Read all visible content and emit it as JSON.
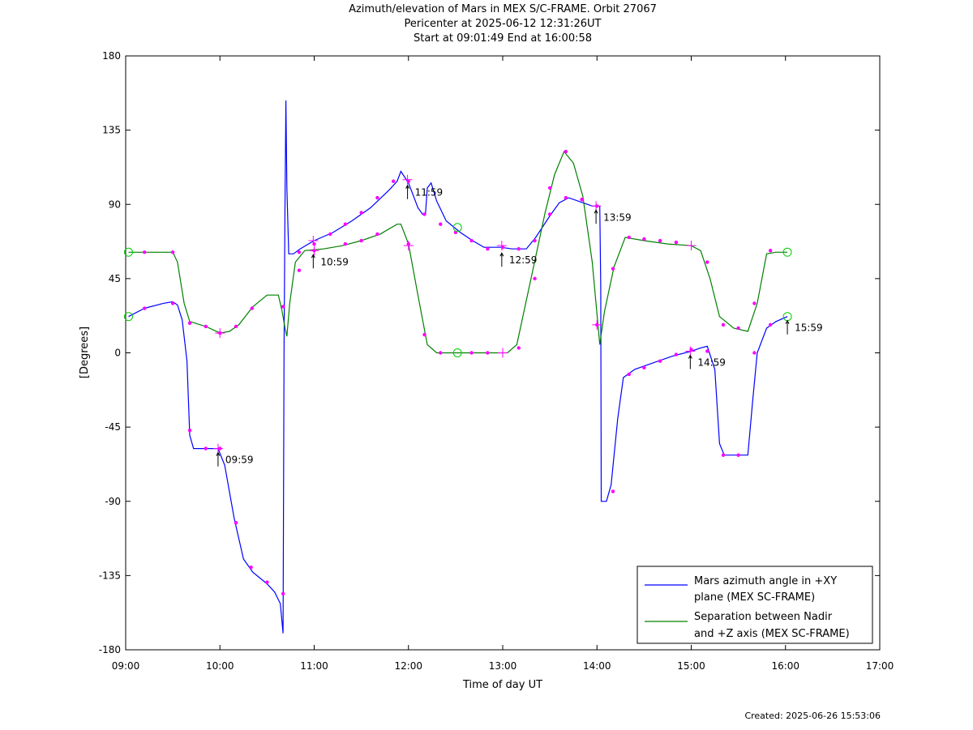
{
  "title_lines": [
    "Azimuth/elevation of Mars in MEX S/C-FRAME.  Orbit 27067",
    "Pericenter at 2025-06-12 12:31:26UT",
    "Start at 09:01:49 End at 16:00:58"
  ],
  "footer": "Created: 2025-06-26 15:53:06",
  "chart_data": {
    "type": "line",
    "xlabel": "Time of day UT",
    "ylabel": "[Degrees]",
    "xlim": [
      9,
      17
    ],
    "ylim": [
      -180,
      180
    ],
    "x_ticks": [
      9,
      10,
      11,
      12,
      13,
      14,
      15,
      16,
      17
    ],
    "x_tick_labels": [
      "09:00",
      "10:00",
      "11:00",
      "12:00",
      "13:00",
      "14:00",
      "15:00",
      "16:00",
      "17:00"
    ],
    "y_ticks": [
      180,
      135,
      90,
      45,
      0,
      -45,
      -90,
      -135,
      -180
    ],
    "y_tick_labels": [
      "180",
      "135",
      "90",
      "45",
      "0",
      "-45",
      "-90",
      "-135",
      "-180"
    ],
    "grid": false,
    "legend_position": "bottom-right",
    "colors": {
      "azimuth": "#0000ff",
      "separation": "#008000",
      "markers": "#ff00ff",
      "endpoints": "#00cc00"
    },
    "series": [
      {
        "name": "Mars azimuth angle in +XY plane (MEX SC-FRAME)",
        "legend_lines": [
          "Mars azimuth angle in +XY",
          "plane (MEX SC-FRAME)"
        ],
        "color": "#0000ff",
        "points": [
          [
            9.03,
            22
          ],
          [
            9.2,
            27
          ],
          [
            9.4,
            30
          ],
          [
            9.5,
            31
          ],
          [
            9.55,
            29
          ],
          [
            9.6,
            20
          ],
          [
            9.65,
            -5
          ],
          [
            9.68,
            -50
          ],
          [
            9.72,
            -58
          ],
          [
            9.85,
            -58
          ],
          [
            9.98,
            -58
          ],
          [
            10.05,
            -68
          ],
          [
            10.15,
            -100
          ],
          [
            10.25,
            -125
          ],
          [
            10.35,
            -133
          ],
          [
            10.5,
            -140
          ],
          [
            10.58,
            -145
          ],
          [
            10.64,
            -152
          ],
          [
            10.67,
            -170
          ],
          [
            10.68,
            0
          ],
          [
            10.69,
            90
          ],
          [
            10.7,
            153
          ],
          [
            10.71,
            100
          ],
          [
            10.73,
            60
          ],
          [
            10.78,
            60
          ],
          [
            10.85,
            63
          ],
          [
            11.0,
            68
          ],
          [
            11.2,
            73
          ],
          [
            11.4,
            80
          ],
          [
            11.6,
            88
          ],
          [
            11.8,
            99
          ],
          [
            11.88,
            104
          ],
          [
            11.92,
            110
          ],
          [
            12.0,
            103
          ],
          [
            12.1,
            88
          ],
          [
            12.15,
            84
          ],
          [
            12.18,
            84
          ],
          [
            12.2,
            100
          ],
          [
            12.24,
            103
          ],
          [
            12.3,
            92
          ],
          [
            12.4,
            80
          ],
          [
            12.55,
            73
          ],
          [
            12.68,
            68
          ],
          [
            12.8,
            64
          ],
          [
            12.98,
            64
          ],
          [
            13.1,
            63
          ],
          [
            13.25,
            63
          ],
          [
            13.35,
            70
          ],
          [
            13.5,
            83
          ],
          [
            13.6,
            91
          ],
          [
            13.7,
            94
          ],
          [
            13.85,
            91
          ],
          [
            13.95,
            89
          ],
          [
            14.03,
            89
          ],
          [
            14.04,
            40
          ],
          [
            14.045,
            -90
          ],
          [
            14.1,
            -90
          ],
          [
            14.15,
            -80
          ],
          [
            14.22,
            -40
          ],
          [
            14.28,
            -15
          ],
          [
            14.4,
            -10
          ],
          [
            14.6,
            -6
          ],
          [
            14.8,
            -2
          ],
          [
            15.0,
            1
          ],
          [
            15.1,
            3
          ],
          [
            15.17,
            4
          ],
          [
            15.25,
            -10
          ],
          [
            15.3,
            -55
          ],
          [
            15.35,
            -62
          ],
          [
            15.5,
            -62
          ],
          [
            15.6,
            -62
          ],
          [
            15.65,
            -30
          ],
          [
            15.7,
            0
          ],
          [
            15.8,
            15
          ],
          [
            15.9,
            19
          ],
          [
            16.02,
            22
          ]
        ]
      },
      {
        "name": "Separation between Nadir and +Z axis (MEX SC-FRAME)",
        "legend_lines": [
          "Separation between Nadir",
          "and +Z axis (MEX SC-FRAME)"
        ],
        "color": "#008000",
        "points": [
          [
            9.03,
            61
          ],
          [
            9.2,
            61
          ],
          [
            9.4,
            61
          ],
          [
            9.5,
            61
          ],
          [
            9.55,
            55
          ],
          [
            9.62,
            30
          ],
          [
            9.68,
            19
          ],
          [
            9.85,
            16
          ],
          [
            10.0,
            12
          ],
          [
            10.1,
            13
          ],
          [
            10.2,
            17
          ],
          [
            10.35,
            28
          ],
          [
            10.5,
            35
          ],
          [
            10.62,
            35
          ],
          [
            10.66,
            25
          ],
          [
            10.69,
            15
          ],
          [
            10.71,
            10
          ],
          [
            10.74,
            30
          ],
          [
            10.8,
            55
          ],
          [
            10.9,
            62
          ],
          [
            11.1,
            63
          ],
          [
            11.3,
            65
          ],
          [
            11.5,
            68
          ],
          [
            11.7,
            72
          ],
          [
            11.88,
            78
          ],
          [
            11.92,
            78
          ],
          [
            12.0,
            66
          ],
          [
            12.1,
            35
          ],
          [
            12.2,
            5
          ],
          [
            12.3,
            0
          ],
          [
            12.6,
            0
          ],
          [
            12.9,
            0
          ],
          [
            13.05,
            0
          ],
          [
            13.15,
            5
          ],
          [
            13.3,
            45
          ],
          [
            13.45,
            85
          ],
          [
            13.55,
            108
          ],
          [
            13.65,
            122
          ],
          [
            13.75,
            115
          ],
          [
            13.85,
            95
          ],
          [
            13.95,
            55
          ],
          [
            14.03,
            5
          ],
          [
            14.08,
            25
          ],
          [
            14.18,
            52
          ],
          [
            14.3,
            70
          ],
          [
            14.5,
            68
          ],
          [
            14.75,
            66
          ],
          [
            15.0,
            65
          ],
          [
            15.1,
            62
          ],
          [
            15.2,
            45
          ],
          [
            15.3,
            22
          ],
          [
            15.45,
            15
          ],
          [
            15.6,
            13
          ],
          [
            15.7,
            30
          ],
          [
            15.8,
            60
          ],
          [
            15.9,
            61
          ],
          [
            16.02,
            61
          ]
        ]
      }
    ],
    "sample_markers": [
      [
        9.2,
        27
      ],
      [
        9.5,
        30
      ],
      [
        9.68,
        -47
      ],
      [
        9.85,
        -58
      ],
      [
        10.0,
        -58
      ],
      [
        10.17,
        -103
      ],
      [
        10.33,
        -130
      ],
      [
        10.5,
        -139
      ],
      [
        10.67,
        -146
      ],
      [
        10.84,
        61
      ],
      [
        11.0,
        66
      ],
      [
        11.17,
        72
      ],
      [
        11.33,
        78
      ],
      [
        11.5,
        85
      ],
      [
        11.67,
        94
      ],
      [
        11.84,
        104
      ],
      [
        12.0,
        104
      ],
      [
        12.17,
        84
      ],
      [
        12.34,
        78
      ],
      [
        12.5,
        73
      ],
      [
        12.67,
        68
      ],
      [
        12.84,
        63
      ],
      [
        13.0,
        64
      ],
      [
        13.17,
        63
      ],
      [
        13.34,
        68
      ],
      [
        13.5,
        84
      ],
      [
        13.67,
        94
      ],
      [
        13.84,
        93
      ],
      [
        14.0,
        89
      ],
      [
        14.17,
        -84
      ],
      [
        14.34,
        -13
      ],
      [
        14.5,
        -9
      ],
      [
        14.67,
        -5
      ],
      [
        14.84,
        -1
      ],
      [
        15.0,
        2
      ],
      [
        15.17,
        1
      ],
      [
        15.34,
        -62
      ],
      [
        15.5,
        -62
      ],
      [
        15.67,
        0
      ],
      [
        15.84,
        17
      ],
      [
        9.2,
        61
      ],
      [
        9.5,
        61
      ],
      [
        9.68,
        18
      ],
      [
        9.85,
        16
      ],
      [
        10.0,
        12
      ],
      [
        10.17,
        16
      ],
      [
        10.34,
        27
      ],
      [
        10.67,
        28
      ],
      [
        10.84,
        50
      ],
      [
        11.0,
        62
      ],
      [
        11.33,
        66
      ],
      [
        11.5,
        68
      ],
      [
        11.67,
        72
      ],
      [
        12.0,
        66
      ],
      [
        12.17,
        11
      ],
      [
        12.34,
        0
      ],
      [
        12.67,
        0
      ],
      [
        12.84,
        0
      ],
      [
        13.17,
        3
      ],
      [
        13.34,
        45
      ],
      [
        13.5,
        100
      ],
      [
        13.67,
        122
      ],
      [
        13.84,
        93
      ],
      [
        14.0,
        17
      ],
      [
        14.17,
        51
      ],
      [
        14.34,
        70
      ],
      [
        14.5,
        69
      ],
      [
        14.67,
        68
      ],
      [
        14.84,
        67
      ],
      [
        15.17,
        55
      ],
      [
        15.34,
        17
      ],
      [
        15.5,
        15
      ],
      [
        15.67,
        30
      ],
      [
        15.84,
        62
      ]
    ],
    "hour_cross_markers": [
      [
        9.98,
        -58
      ],
      [
        10.99,
        68
      ],
      [
        11.99,
        105
      ],
      [
        12.99,
        65
      ],
      [
        13.99,
        89
      ],
      [
        14.99,
        1
      ],
      [
        10.0,
        12
      ],
      [
        11.0,
        62
      ],
      [
        12.0,
        65
      ],
      [
        13.0,
        0
      ],
      [
        14.0,
        17
      ],
      [
        15.0,
        65
      ]
    ],
    "endpoint_markers": [
      [
        9.03,
        22
      ],
      [
        9.03,
        61
      ],
      [
        16.02,
        22
      ],
      [
        16.02,
        61
      ],
      [
        12.52,
        76
      ],
      [
        12.52,
        0
      ]
    ],
    "annotations": [
      {
        "label": "09:59",
        "x": 9.98,
        "y": -58
      },
      {
        "label": "10:59",
        "x": 10.99,
        "y": 62
      },
      {
        "label": "11:59",
        "x": 11.99,
        "y": 104
      },
      {
        "label": "12:59",
        "x": 12.99,
        "y": 63
      },
      {
        "label": "13:59",
        "x": 13.99,
        "y": 89
      },
      {
        "label": "14:59",
        "x": 14.99,
        "y": 1
      },
      {
        "label": "15:59",
        "x": 16.02,
        "y": 22
      }
    ]
  }
}
